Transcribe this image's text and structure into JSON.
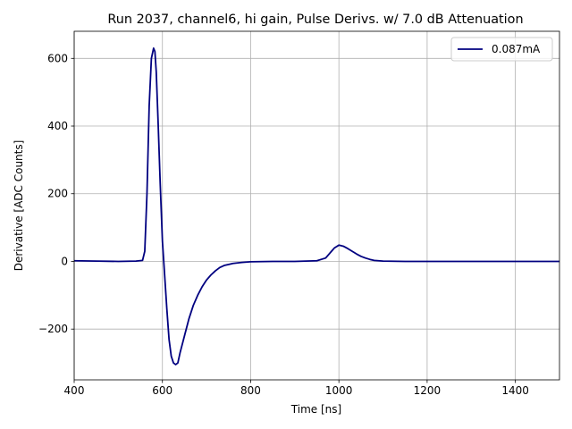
{
  "chart_data": {
    "type": "line",
    "title": "Run 2037, channel6, hi gain, Pulse Derivs. w/ 7.0 dB Attenuation",
    "xlabel": "Time [ns]",
    "ylabel": "Derivative [ADC Counts]",
    "xlim": [
      400,
      1500
    ],
    "ylim": [
      -350,
      680
    ],
    "xticks": [
      400,
      600,
      800,
      1000,
      1200,
      1400
    ],
    "xtick_labels": [
      "400",
      "600",
      "800",
      "1000",
      "1200",
      "1400"
    ],
    "yticks": [
      -200,
      0,
      200,
      400,
      600
    ],
    "ytick_labels": [
      "−200",
      "0",
      "200",
      "400",
      "600"
    ],
    "grid": true,
    "legend_position": "top-right",
    "series": [
      {
        "name": "0.087mA",
        "color": "#000080",
        "x": [
          400,
          450,
          500,
          540,
          555,
          560,
          565,
          570,
          575,
          580,
          583,
          586,
          590,
          595,
          600,
          605,
          610,
          615,
          620,
          625,
          630,
          635,
          640,
          650,
          660,
          670,
          680,
          690,
          700,
          710,
          720,
          730,
          740,
          760,
          780,
          800,
          850,
          900,
          950,
          970,
          980,
          990,
          1000,
          1010,
          1020,
          1030,
          1040,
          1050,
          1060,
          1070,
          1080,
          1100,
          1150,
          1200,
          1300,
          1400,
          1500
        ],
        "y": [
          2,
          1,
          0,
          1,
          3,
          30,
          200,
          460,
          600,
          630,
          620,
          560,
          420,
          230,
          60,
          -40,
          -140,
          -230,
          -280,
          -300,
          -305,
          -300,
          -270,
          -220,
          -170,
          -130,
          -100,
          -75,
          -55,
          -40,
          -28,
          -18,
          -12,
          -6,
          -3,
          -1,
          0,
          0,
          2,
          10,
          25,
          40,
          48,
          45,
          38,
          30,
          22,
          15,
          10,
          6,
          3,
          1,
          0,
          0,
          0,
          0,
          0
        ]
      }
    ]
  }
}
